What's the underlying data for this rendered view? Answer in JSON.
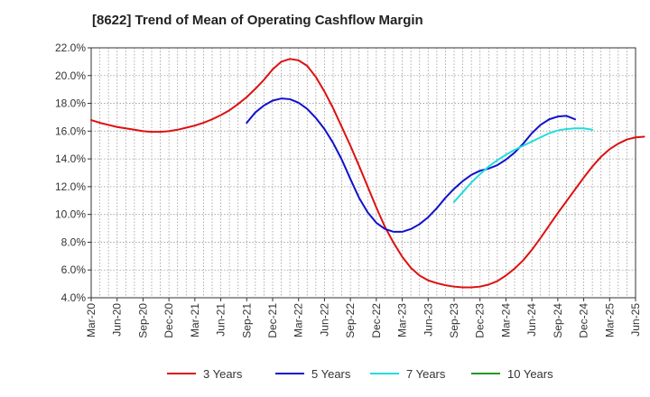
{
  "chart_data": {
    "type": "line",
    "title": "[8622]  Trend of Mean of Operating Cashflow Margin",
    "xlabel": "",
    "ylabel": "",
    "ylim": [
      4.0,
      22.0
    ],
    "yticks": [
      4.0,
      6.0,
      8.0,
      10.0,
      12.0,
      14.0,
      16.0,
      18.0,
      20.0,
      22.0
    ],
    "ytick_labels": [
      "4.0%",
      "6.0%",
      "8.0%",
      "10.0%",
      "12.0%",
      "14.0%",
      "16.0%",
      "18.0%",
      "20.0%",
      "22.0%"
    ],
    "x_tick_labels": [
      "Mar-20",
      "Jun-20",
      "Sep-20",
      "Dec-20",
      "Mar-21",
      "Jun-21",
      "Sep-21",
      "Dec-21",
      "Mar-22",
      "Jun-22",
      "Sep-22",
      "Dec-22",
      "Mar-23",
      "Jun-23",
      "Sep-23",
      "Dec-23",
      "Mar-24",
      "Jun-24",
      "Sep-24",
      "Dec-24",
      "Mar-25",
      "Jun-25"
    ],
    "grid": true,
    "legend_position": "bottom",
    "series": [
      {
        "name": "3 Years",
        "color": "#dd1111",
        "start_month_index": 0,
        "values": [
          16.8,
          16.6,
          16.45,
          16.3,
          16.2,
          16.1,
          16.0,
          15.95,
          15.95,
          16.0,
          16.1,
          16.25,
          16.4,
          16.6,
          16.85,
          17.15,
          17.5,
          17.95,
          18.45,
          19.05,
          19.7,
          20.45,
          21.0,
          21.2,
          21.1,
          20.7,
          19.9,
          18.85,
          17.65,
          16.3,
          14.95,
          13.5,
          12.0,
          10.5,
          9.1,
          7.95,
          6.95,
          6.15,
          5.6,
          5.25,
          5.05,
          4.9,
          4.8,
          4.75,
          4.75,
          4.8,
          4.95,
          5.2,
          5.6,
          6.1,
          6.7,
          7.45,
          8.3,
          9.2,
          10.1,
          10.95,
          11.8,
          12.65,
          13.45,
          14.15,
          14.7,
          15.1,
          15.4,
          15.55,
          15.6
        ]
      },
      {
        "name": "5 Years",
        "color": "#1111cc",
        "start_month_index": 18,
        "values": [
          16.6,
          17.35,
          17.85,
          18.2,
          18.35,
          18.3,
          18.05,
          17.6,
          16.95,
          16.15,
          15.15,
          13.95,
          12.55,
          11.2,
          10.15,
          9.4,
          8.95,
          8.75,
          8.75,
          8.95,
          9.3,
          9.8,
          10.45,
          11.2,
          11.85,
          12.4,
          12.85,
          13.15,
          13.3,
          13.55,
          13.95,
          14.45,
          15.1,
          15.85,
          16.45,
          16.85,
          17.05,
          17.1,
          16.85
        ]
      },
      {
        "name": "7 Years",
        "color": "#22dddd",
        "start_month_index": 42,
        "values": [
          10.9,
          11.6,
          12.3,
          12.9,
          13.45,
          13.9,
          14.3,
          14.65,
          14.95,
          15.25,
          15.55,
          15.85,
          16.05,
          16.15,
          16.2,
          16.2,
          16.1
        ]
      },
      {
        "name": "10 Years",
        "color": "#229922",
        "start_month_index": 0,
        "values": []
      }
    ]
  }
}
